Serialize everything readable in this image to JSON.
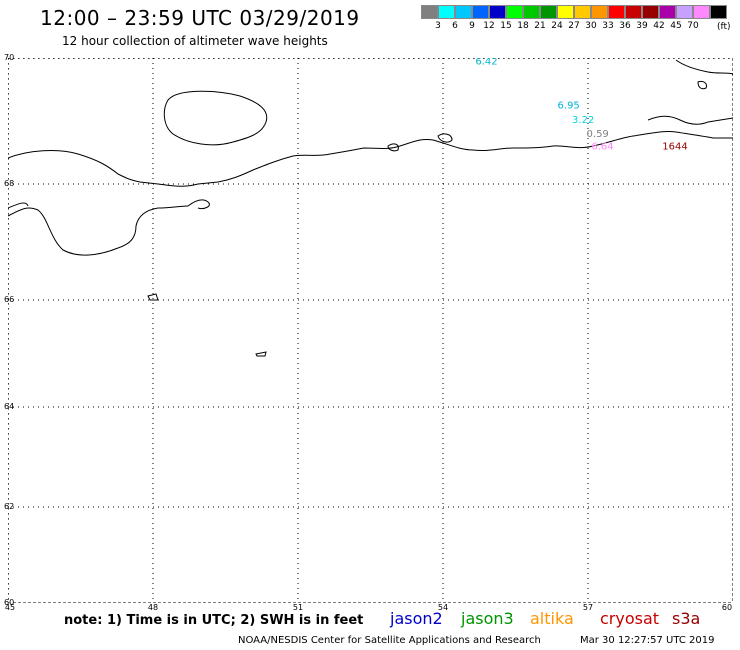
{
  "header": {
    "title": "12:00 – 23:59 UTC 03/29/2019",
    "subtitle": "12 hour collection of altimeter wave heights"
  },
  "legend": {
    "unit": "(ft)",
    "items": [
      {
        "label": "",
        "color": "#808080"
      },
      {
        "label": "3",
        "color": "#00ffff"
      },
      {
        "label": "6",
        "color": "#00c8ff"
      },
      {
        "label": "9",
        "color": "#0064ff"
      },
      {
        "label": "12",
        "color": "#0000c8"
      },
      {
        "label": "15",
        "color": "#00ff00"
      },
      {
        "label": "18",
        "color": "#00c800"
      },
      {
        "label": "21",
        "color": "#009600"
      },
      {
        "label": "24",
        "color": "#ffff00"
      },
      {
        "label": "27",
        "color": "#ffc800"
      },
      {
        "label": "30",
        "color": "#ff9600"
      },
      {
        "label": "33",
        "color": "#ff0000"
      },
      {
        "label": "36",
        "color": "#c80000"
      },
      {
        "label": "39",
        "color": "#960000"
      },
      {
        "label": "42",
        "color": "#aa00aa"
      },
      {
        "label": "45",
        "color": "#c8a0ff"
      },
      {
        "label": "70",
        "color": "#ff88ff"
      },
      {
        "label": "",
        "color": "#000000"
      }
    ]
  },
  "map": {
    "lon_ticks": [
      "45",
      "48",
      "51",
      "54",
      "57",
      "60"
    ],
    "lat_ticks": [
      "70",
      "68",
      "66",
      "64",
      "62",
      "60"
    ],
    "wave_labels": [
      {
        "text": "6.42",
        "color": "#00b4d2",
        "lon": 54.9,
        "lat": 69.9
      },
      {
        "text": "6.95",
        "color": "#00b4d2",
        "lon": 56.6,
        "lat": 69.2
      },
      {
        "text": "3.22",
        "color": "#00d2e6",
        "lon": 56.9,
        "lat": 68.97
      },
      {
        "text": "0.59",
        "color": "#808080",
        "lon": 57.2,
        "lat": 68.75
      },
      {
        "text": "6.64",
        "color": "#ff88ff",
        "lon": 57.3,
        "lat": 68.55
      },
      {
        "text": "1644",
        "color": "#960000",
        "lon": 58.8,
        "lat": 68.55
      }
    ]
  },
  "footer": {
    "note": "note: 1) Time is in UTC; 2) SWH is in feet",
    "satellites": [
      {
        "name": "jason2",
        "color": "#0000c8"
      },
      {
        "name": "jason3",
        "color": "#009600"
      },
      {
        "name": "altika",
        "color": "#ff9600"
      },
      {
        "name": "cryosat",
        "color": "#c80000"
      },
      {
        "name": "s3a",
        "color": "#960000"
      }
    ],
    "credit": "NOAA/NESDIS Center for Satellite Applications and Research",
    "timestamp": "Mar 30 12:27:57 UTC 2019"
  }
}
